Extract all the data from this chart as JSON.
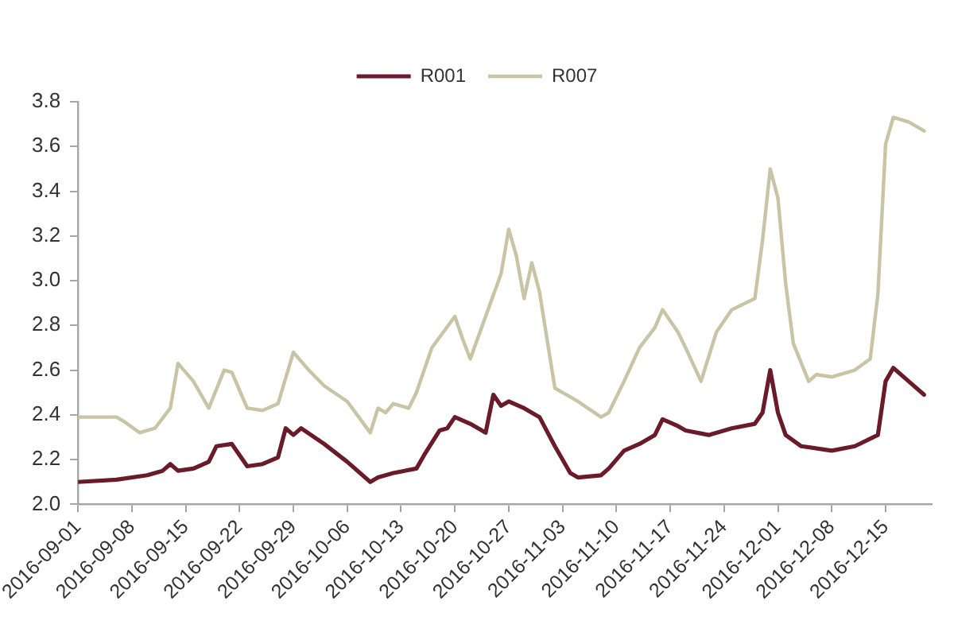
{
  "chart_data": {
    "type": "line",
    "xlim": [
      "2016-09-01",
      "2016-12-21"
    ],
    "xticks": [
      "2016-09-01",
      "2016-09-08",
      "2016-09-15",
      "2016-09-22",
      "2016-09-29",
      "2016-10-06",
      "2016-10-13",
      "2016-10-20",
      "2016-10-27",
      "2016-11-03",
      "2016-11-10",
      "2016-11-17",
      "2016-11-24",
      "2016-12-01",
      "2016-12-08",
      "2016-12-15"
    ],
    "ylim": [
      2.0,
      3.8
    ],
    "yticks": [
      {
        "value": 2.0,
        "label": "2.0"
      },
      2.2,
      2.4,
      2.6,
      2.8,
      {
        "value": 3.0,
        "label": "3.0"
      },
      3.2,
      3.4,
      3.6,
      3.8
    ],
    "legend": "top",
    "series": [
      {
        "name": "R001",
        "color": "#6a1b2a",
        "x": [
          "2016-09-01",
          "2016-09-06",
          "2016-09-10",
          "2016-09-12",
          "2016-09-13",
          "2016-09-14",
          "2016-09-16",
          "2016-09-18",
          "2016-09-19",
          "2016-09-21",
          "2016-09-22",
          "2016-09-23",
          "2016-09-25",
          "2016-09-27",
          "2016-09-28",
          "2016-09-29",
          "2016-09-30",
          "2016-10-03",
          "2016-10-06",
          "2016-10-09",
          "2016-10-10",
          "2016-10-12",
          "2016-10-15",
          "2016-10-16",
          "2016-10-18",
          "2016-10-19",
          "2016-10-20",
          "2016-10-22",
          "2016-10-24",
          "2016-10-25",
          "2016-10-26",
          "2016-10-27",
          "2016-10-29",
          "2016-10-31",
          "2016-11-02",
          "2016-11-04",
          "2016-11-05",
          "2016-11-08",
          "2016-11-09",
          "2016-11-11",
          "2016-11-13",
          "2016-11-15",
          "2016-11-16",
          "2016-11-18",
          "2016-11-19",
          "2016-11-22",
          "2016-11-25",
          "2016-11-28",
          "2016-11-29",
          "2016-11-30",
          "2016-12-01",
          "2016-12-02",
          "2016-12-04",
          "2016-12-08",
          "2016-12-11",
          "2016-12-14",
          "2016-12-15",
          "2016-12-16",
          "2016-12-18",
          "2016-12-20"
        ],
        "values": [
          2.1,
          2.11,
          2.13,
          2.15,
          2.18,
          2.15,
          2.16,
          2.19,
          2.26,
          2.27,
          2.22,
          2.17,
          2.18,
          2.21,
          2.34,
          2.31,
          2.34,
          2.27,
          2.19,
          2.1,
          2.12,
          2.14,
          2.16,
          2.22,
          2.33,
          2.34,
          2.39,
          2.36,
          2.32,
          2.49,
          2.44,
          2.46,
          2.43,
          2.39,
          2.26,
          2.14,
          2.12,
          2.13,
          2.16,
          2.24,
          2.27,
          2.31,
          2.38,
          2.35,
          2.33,
          2.31,
          2.34,
          2.36,
          2.41,
          2.6,
          2.41,
          2.31,
          2.26,
          2.24,
          2.26,
          2.31,
          2.55,
          2.61,
          2.55,
          2.49
        ]
      },
      {
        "name": "R007",
        "color": "#c9c4a6",
        "x": [
          "2016-09-01",
          "2016-09-06",
          "2016-09-07",
          "2016-09-09",
          "2016-09-11",
          "2016-09-13",
          "2016-09-14",
          "2016-09-16",
          "2016-09-18",
          "2016-09-20",
          "2016-09-21",
          "2016-09-23",
          "2016-09-25",
          "2016-09-27",
          "2016-09-29",
          "2016-10-01",
          "2016-10-03",
          "2016-10-06",
          "2016-10-09",
          "2016-10-10",
          "2016-10-11",
          "2016-10-12",
          "2016-10-14",
          "2016-10-15",
          "2016-10-17",
          "2016-10-20",
          "2016-10-21",
          "2016-10-22",
          "2016-10-24",
          "2016-10-26",
          "2016-10-27",
          "2016-10-28",
          "2016-10-29",
          "2016-10-30",
          "2016-10-31",
          "2016-11-02",
          "2016-11-05",
          "2016-11-08",
          "2016-11-09",
          "2016-11-11",
          "2016-11-13",
          "2016-11-15",
          "2016-11-16",
          "2016-11-18",
          "2016-11-19",
          "2016-11-21",
          "2016-11-23",
          "2016-11-25",
          "2016-11-28",
          "2016-11-29",
          "2016-11-30",
          "2016-12-01",
          "2016-12-02",
          "2016-12-03",
          "2016-12-05",
          "2016-12-06",
          "2016-12-08",
          "2016-12-11",
          "2016-12-13",
          "2016-12-14",
          "2016-12-15",
          "2016-12-16",
          "2016-12-18",
          "2016-12-20"
        ],
        "values": [
          2.39,
          2.39,
          2.37,
          2.32,
          2.34,
          2.43,
          2.63,
          2.55,
          2.43,
          2.6,
          2.59,
          2.43,
          2.42,
          2.45,
          2.68,
          2.6,
          2.53,
          2.46,
          2.32,
          2.43,
          2.41,
          2.45,
          2.43,
          2.5,
          2.7,
          2.84,
          2.74,
          2.65,
          2.84,
          3.03,
          3.23,
          3.11,
          2.92,
          3.08,
          2.95,
          2.52,
          2.46,
          2.39,
          2.41,
          2.55,
          2.7,
          2.79,
          2.87,
          2.77,
          2.7,
          2.55,
          2.77,
          2.87,
          2.92,
          3.18,
          3.5,
          3.37,
          2.99,
          2.72,
          2.55,
          2.58,
          2.57,
          2.6,
          2.65,
          2.94,
          3.61,
          3.73,
          3.71,
          3.67
        ]
      }
    ]
  }
}
